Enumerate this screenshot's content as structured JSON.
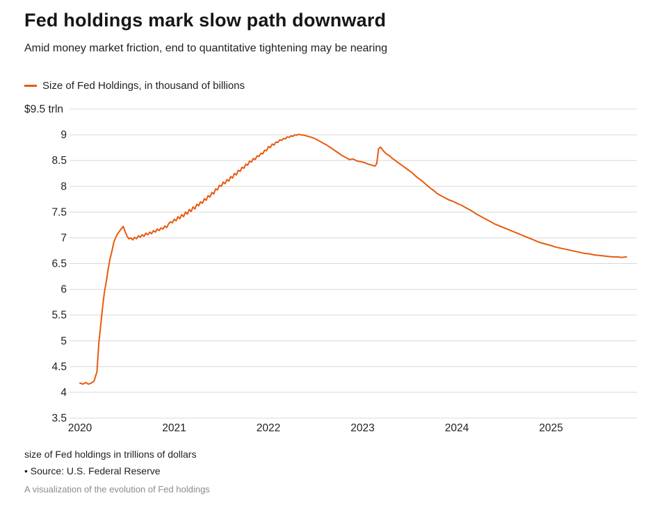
{
  "header": {
    "title": "Fed holdings mark slow path downward",
    "subtitle": "Amid money market friction, end to quantitative tightening may be nearing"
  },
  "legend": {
    "label": "Size of Fed Holdings, in thousand of billions",
    "color": "#e8590c"
  },
  "footer": {
    "note": "size of Fed holdings in trillions of dollars",
    "source": "• Source: U.S. Federal Reserve",
    "caption": "A visualization of the evolution of Fed holdings"
  },
  "chart_data": {
    "type": "line",
    "title": "Fed holdings mark slow path downward",
    "subtitle": "Amid money market friction, end to quantitative tightening may be nearing",
    "xlabel": "",
    "ylabel": "",
    "unit": "trillions of dollars",
    "x_range": [
      2020,
      2025.85
    ],
    "y_range": [
      3.5,
      9.5
    ],
    "grid": "horizontal",
    "legend_position": "top-left",
    "x_ticks": [
      2020,
      2021,
      2022,
      2023,
      2024,
      2025
    ],
    "x_tick_labels": [
      "2020",
      "2021",
      "2022",
      "2023",
      "2024",
      "2025"
    ],
    "y_ticks": [
      9.5,
      9,
      8.5,
      8,
      7.5,
      7,
      6.5,
      6,
      5.5,
      5,
      4.5,
      4,
      3.5
    ],
    "y_tick_labels": [
      "$9.5 trln",
      "9",
      "8.5",
      "8",
      "7.5",
      "7",
      "6.5",
      "6",
      "5.5",
      "5",
      "4.5",
      "4",
      "3.5"
    ],
    "series": [
      {
        "name": "Size of Fed Holdings, in thousand of billions",
        "color": "#e8590c",
        "points": [
          [
            2020.0,
            4.18
          ],
          [
            2020.03,
            4.16
          ],
          [
            2020.06,
            4.19
          ],
          [
            2020.09,
            4.16
          ],
          [
            2020.12,
            4.18
          ],
          [
            2020.15,
            4.22
          ],
          [
            2020.18,
            4.4
          ],
          [
            2020.2,
            4.95
          ],
          [
            2020.22,
            5.3
          ],
          [
            2020.24,
            5.65
          ],
          [
            2020.26,
            5.95
          ],
          [
            2020.28,
            6.15
          ],
          [
            2020.3,
            6.4
          ],
          [
            2020.32,
            6.6
          ],
          [
            2020.34,
            6.75
          ],
          [
            2020.36,
            6.92
          ],
          [
            2020.38,
            7.01
          ],
          [
            2020.4,
            7.08
          ],
          [
            2020.42,
            7.13
          ],
          [
            2020.44,
            7.18
          ],
          [
            2020.46,
            7.22
          ],
          [
            2020.48,
            7.12
          ],
          [
            2020.5,
            7.03
          ],
          [
            2020.52,
            6.98
          ],
          [
            2020.54,
            7.0
          ],
          [
            2020.56,
            6.96
          ],
          [
            2020.58,
            7.01
          ],
          [
            2020.6,
            6.98
          ],
          [
            2020.62,
            7.04
          ],
          [
            2020.64,
            7.01
          ],
          [
            2020.66,
            7.06
          ],
          [
            2020.68,
            7.03
          ],
          [
            2020.7,
            7.09
          ],
          [
            2020.72,
            7.06
          ],
          [
            2020.74,
            7.11
          ],
          [
            2020.76,
            7.08
          ],
          [
            2020.78,
            7.14
          ],
          [
            2020.8,
            7.11
          ],
          [
            2020.82,
            7.17
          ],
          [
            2020.84,
            7.14
          ],
          [
            2020.86,
            7.19
          ],
          [
            2020.88,
            7.17
          ],
          [
            2020.9,
            7.23
          ],
          [
            2020.92,
            7.2
          ],
          [
            2020.94,
            7.27
          ],
          [
            2020.96,
            7.31
          ],
          [
            2020.98,
            7.29
          ],
          [
            2021.0,
            7.36
          ],
          [
            2021.02,
            7.33
          ],
          [
            2021.04,
            7.41
          ],
          [
            2021.06,
            7.37
          ],
          [
            2021.08,
            7.45
          ],
          [
            2021.1,
            7.41
          ],
          [
            2021.12,
            7.5
          ],
          [
            2021.14,
            7.46
          ],
          [
            2021.16,
            7.55
          ],
          [
            2021.18,
            7.51
          ],
          [
            2021.2,
            7.6
          ],
          [
            2021.22,
            7.56
          ],
          [
            2021.24,
            7.65
          ],
          [
            2021.26,
            7.62
          ],
          [
            2021.28,
            7.7
          ],
          [
            2021.3,
            7.67
          ],
          [
            2021.32,
            7.76
          ],
          [
            2021.34,
            7.73
          ],
          [
            2021.36,
            7.82
          ],
          [
            2021.38,
            7.79
          ],
          [
            2021.4,
            7.88
          ],
          [
            2021.42,
            7.85
          ],
          [
            2021.44,
            7.95
          ],
          [
            2021.46,
            7.93
          ],
          [
            2021.48,
            8.02
          ],
          [
            2021.5,
            8.0
          ],
          [
            2021.52,
            8.08
          ],
          [
            2021.54,
            8.05
          ],
          [
            2021.56,
            8.13
          ],
          [
            2021.58,
            8.1
          ],
          [
            2021.6,
            8.19
          ],
          [
            2021.62,
            8.16
          ],
          [
            2021.64,
            8.25
          ],
          [
            2021.66,
            8.22
          ],
          [
            2021.68,
            8.31
          ],
          [
            2021.7,
            8.29
          ],
          [
            2021.72,
            8.37
          ],
          [
            2021.74,
            8.35
          ],
          [
            2021.76,
            8.43
          ],
          [
            2021.78,
            8.41
          ],
          [
            2021.8,
            8.49
          ],
          [
            2021.82,
            8.47
          ],
          [
            2021.84,
            8.54
          ],
          [
            2021.86,
            8.52
          ],
          [
            2021.88,
            8.59
          ],
          [
            2021.9,
            8.58
          ],
          [
            2021.92,
            8.64
          ],
          [
            2021.94,
            8.63
          ],
          [
            2021.96,
            8.7
          ],
          [
            2021.98,
            8.69
          ],
          [
            2022.0,
            8.77
          ],
          [
            2022.02,
            8.75
          ],
          [
            2022.04,
            8.82
          ],
          [
            2022.06,
            8.8
          ],
          [
            2022.08,
            8.86
          ],
          [
            2022.1,
            8.85
          ],
          [
            2022.12,
            8.9
          ],
          [
            2022.14,
            8.89
          ],
          [
            2022.16,
            8.93
          ],
          [
            2022.18,
            8.92
          ],
          [
            2022.2,
            8.96
          ],
          [
            2022.22,
            8.95
          ],
          [
            2022.24,
            8.98
          ],
          [
            2022.26,
            8.97
          ],
          [
            2022.28,
            9.0
          ],
          [
            2022.3,
            8.99
          ],
          [
            2022.32,
            9.01
          ],
          [
            2022.34,
            9.0
          ],
          [
            2022.38,
            8.99
          ],
          [
            2022.42,
            8.97
          ],
          [
            2022.46,
            8.95
          ],
          [
            2022.5,
            8.92
          ],
          [
            2022.54,
            8.88
          ],
          [
            2022.58,
            8.84
          ],
          [
            2022.62,
            8.8
          ],
          [
            2022.66,
            8.75
          ],
          [
            2022.7,
            8.7
          ],
          [
            2022.74,
            8.65
          ],
          [
            2022.78,
            8.6
          ],
          [
            2022.82,
            8.56
          ],
          [
            2022.86,
            8.52
          ],
          [
            2022.9,
            8.53
          ],
          [
            2022.94,
            8.49
          ],
          [
            2022.98,
            8.48
          ],
          [
            2023.02,
            8.46
          ],
          [
            2023.06,
            8.43
          ],
          [
            2023.1,
            8.41
          ],
          [
            2023.13,
            8.39
          ],
          [
            2023.15,
            8.44
          ],
          [
            2023.17,
            8.73
          ],
          [
            2023.19,
            8.76
          ],
          [
            2023.22,
            8.69
          ],
          [
            2023.25,
            8.63
          ],
          [
            2023.28,
            8.6
          ],
          [
            2023.31,
            8.55
          ],
          [
            2023.34,
            8.51
          ],
          [
            2023.37,
            8.47
          ],
          [
            2023.4,
            8.43
          ],
          [
            2023.43,
            8.39
          ],
          [
            2023.46,
            8.35
          ],
          [
            2023.49,
            8.31
          ],
          [
            2023.52,
            8.27
          ],
          [
            2023.55,
            8.22
          ],
          [
            2023.58,
            8.17
          ],
          [
            2023.61,
            8.13
          ],
          [
            2023.64,
            8.09
          ],
          [
            2023.67,
            8.04
          ],
          [
            2023.7,
            7.99
          ],
          [
            2023.73,
            7.95
          ],
          [
            2023.76,
            7.91
          ],
          [
            2023.79,
            7.86
          ],
          [
            2023.82,
            7.83
          ],
          [
            2023.85,
            7.8
          ],
          [
            2023.88,
            7.77
          ],
          [
            2023.91,
            7.74
          ],
          [
            2023.94,
            7.72
          ],
          [
            2023.97,
            7.7
          ],
          [
            2024.0,
            7.67
          ],
          [
            2024.04,
            7.64
          ],
          [
            2024.08,
            7.6
          ],
          [
            2024.12,
            7.56
          ],
          [
            2024.16,
            7.52
          ],
          [
            2024.2,
            7.47
          ],
          [
            2024.24,
            7.43
          ],
          [
            2024.28,
            7.39
          ],
          [
            2024.32,
            7.35
          ],
          [
            2024.36,
            7.31
          ],
          [
            2024.4,
            7.27
          ],
          [
            2024.44,
            7.24
          ],
          [
            2024.48,
            7.21
          ],
          [
            2024.52,
            7.18
          ],
          [
            2024.56,
            7.15
          ],
          [
            2024.6,
            7.12
          ],
          [
            2024.64,
            7.09
          ],
          [
            2024.68,
            7.06
          ],
          [
            2024.72,
            7.03
          ],
          [
            2024.76,
            7.0
          ],
          [
            2024.8,
            6.97
          ],
          [
            2024.84,
            6.94
          ],
          [
            2024.88,
            6.91
          ],
          [
            2024.92,
            6.89
          ],
          [
            2024.96,
            6.87
          ],
          [
            2025.0,
            6.85
          ],
          [
            2025.05,
            6.82
          ],
          [
            2025.1,
            6.8
          ],
          [
            2025.15,
            6.78
          ],
          [
            2025.2,
            6.76
          ],
          [
            2025.25,
            6.74
          ],
          [
            2025.3,
            6.72
          ],
          [
            2025.35,
            6.7
          ],
          [
            2025.4,
            6.69
          ],
          [
            2025.45,
            6.67
          ],
          [
            2025.5,
            6.66
          ],
          [
            2025.55,
            6.65
          ],
          [
            2025.6,
            6.64
          ],
          [
            2025.65,
            6.63
          ],
          [
            2025.7,
            6.63
          ],
          [
            2025.75,
            6.62
          ],
          [
            2025.8,
            6.63
          ]
        ]
      }
    ]
  }
}
